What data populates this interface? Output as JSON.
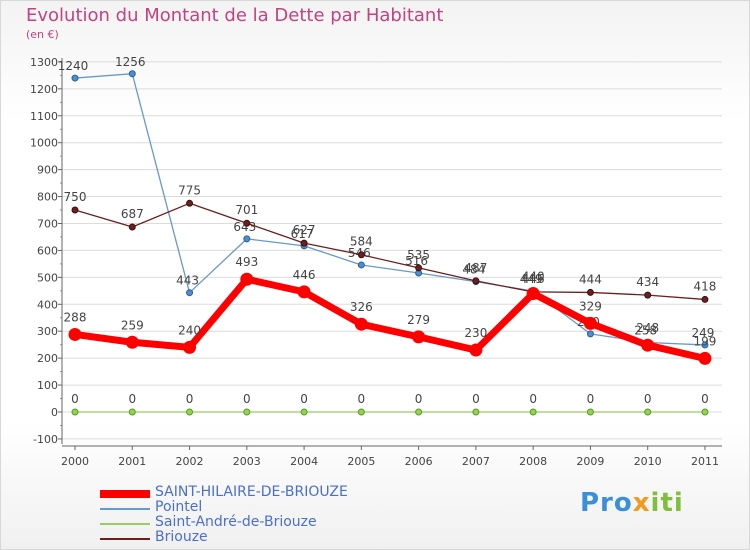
{
  "title": "Evolution du Montant de la Dette par Habitant",
  "subtitle": "(en €)",
  "chart_data": {
    "type": "line",
    "x": [
      "2000",
      "2001",
      "2002",
      "2003",
      "2004",
      "2005",
      "2006",
      "2007",
      "2008",
      "2009",
      "2010",
      "2011"
    ],
    "ylim": [
      -100,
      1300
    ],
    "yticks": [
      -100,
      0,
      100,
      200,
      300,
      400,
      500,
      600,
      700,
      800,
      900,
      1000,
      1100,
      1200,
      1300
    ],
    "grid": "horizontal",
    "legend_position": "bottom-left",
    "series": [
      {
        "name": "SAINT-HILAIRE-DE-BRIOUZE",
        "color": "#ff0000",
        "values": [
          288,
          259,
          240,
          493,
          446,
          326,
          279,
          230,
          440,
          329,
          248,
          199
        ]
      },
      {
        "name": "Pointel",
        "color": "#6699cc",
        "values": [
          1240,
          1256,
          443,
          643,
          617,
          546,
          516,
          484,
          449,
          290,
          258,
          249
        ]
      },
      {
        "name": "Saint-André-de-Briouze",
        "color": "#99cc66",
        "values": [
          0,
          0,
          0,
          0,
          0,
          0,
          0,
          0,
          0,
          0,
          0,
          0
        ]
      },
      {
        "name": "Briouze",
        "color": "#6b1f1f",
        "values": [
          750,
          687,
          775,
          701,
          627,
          584,
          535,
          487,
          446,
          444,
          434,
          418
        ]
      }
    ]
  },
  "logo": {
    "text_a": "Pro",
    "text_b": "x",
    "text_c": "iti"
  }
}
